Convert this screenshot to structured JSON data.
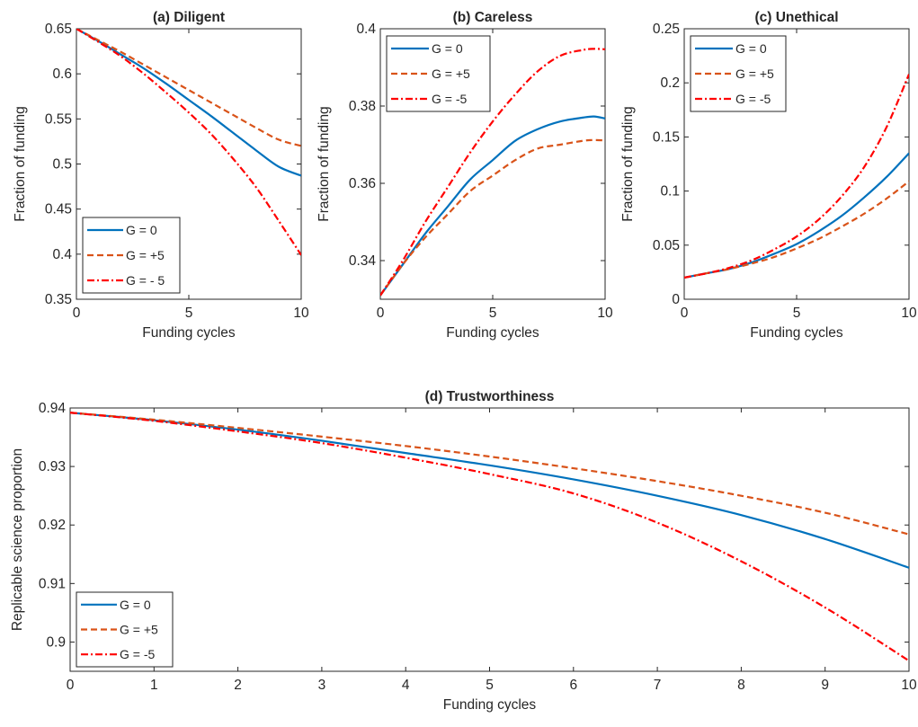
{
  "chart_data": [
    {
      "type": "line",
      "title": "(a) Diligent",
      "xlabel": "Funding cycles",
      "ylabel": "Fraction of funding",
      "xlim": [
        0,
        10
      ],
      "ylim": [
        0.35,
        0.65
      ],
      "xticks": [
        "0",
        "5",
        "10"
      ],
      "yticks": [
        "0.35",
        "0.4",
        "0.45",
        "0.5",
        "0.55",
        "0.6",
        "0.65"
      ],
      "legend": "bottom-left",
      "grid": false,
      "x": [
        0,
        1,
        2,
        3,
        4,
        5,
        6,
        7,
        8,
        9,
        10
      ],
      "series": [
        {
          "name": "G = 0",
          "color": "#0072BD",
          "dash": "solid",
          "values": [
            0.65,
            0.636,
            0.621,
            0.606,
            0.589,
            0.571,
            0.553,
            0.534,
            0.515,
            0.497,
            0.487
          ]
        },
        {
          "name": "G = +5",
          "color": "#D95319",
          "dash": "dashed",
          "values": [
            0.65,
            0.637,
            0.624,
            0.61,
            0.596,
            0.582,
            0.568,
            0.554,
            0.54,
            0.527,
            0.52
          ]
        },
        {
          "name": "G = - 5",
          "color": "#FF0000",
          "dash": "dashdot",
          "values": [
            0.65,
            0.635,
            0.619,
            0.6,
            0.579,
            0.557,
            0.533,
            0.505,
            0.474,
            0.437,
            0.399
          ]
        }
      ]
    },
    {
      "type": "line",
      "title": "(b) Careless",
      "xlabel": "Funding cycles",
      "ylabel": "Fraction of funding",
      "xlim": [
        0,
        10
      ],
      "ylim": [
        0.33,
        0.4
      ],
      "xticks": [
        "0",
        "5",
        "10"
      ],
      "yticks": [
        "0.34",
        "0.36",
        "0.38",
        "0.4"
      ],
      "legend": "top-left",
      "grid": false,
      "x": [
        0,
        1,
        2,
        3,
        4,
        5,
        6,
        7,
        8,
        9,
        9.5,
        10
      ],
      "series": [
        {
          "name": "G = 0",
          "color": "#0072BD",
          "dash": "solid",
          "values": [
            0.331,
            0.339,
            0.347,
            0.354,
            0.361,
            0.366,
            0.371,
            0.374,
            0.376,
            0.377,
            0.3773,
            0.3768
          ]
        },
        {
          "name": "G = +5",
          "color": "#D95319",
          "dash": "dashed",
          "values": [
            0.331,
            0.339,
            0.346,
            0.352,
            0.358,
            0.362,
            0.366,
            0.369,
            0.37,
            0.371,
            0.3712,
            0.3711
          ]
        },
        {
          "name": "G = -5",
          "color": "#FF0000",
          "dash": "dashdot",
          "values": [
            0.331,
            0.34,
            0.35,
            0.359,
            0.368,
            0.376,
            0.383,
            0.389,
            0.393,
            0.3945,
            0.3948,
            0.3947
          ]
        }
      ]
    },
    {
      "type": "line",
      "title": "(c) Unethical",
      "xlabel": "Funding cycles",
      "ylabel": "Fraction of funding",
      "xlim": [
        0,
        10
      ],
      "ylim": [
        0,
        0.25
      ],
      "xticks": [
        "0",
        "5",
        "10"
      ],
      "yticks": [
        "0",
        "0.05",
        "0.1",
        "0.15",
        "0.2",
        "0.25"
      ],
      "legend": "top-left",
      "grid": false,
      "x": [
        0,
        1,
        2,
        3,
        4,
        5,
        6,
        7,
        8,
        9,
        10
      ],
      "series": [
        {
          "name": "G = 0",
          "color": "#0072BD",
          "dash": "solid",
          "values": [
            0.02,
            0.024,
            0.028,
            0.034,
            0.042,
            0.051,
            0.063,
            0.077,
            0.094,
            0.113,
            0.135
          ]
        },
        {
          "name": "G = +5",
          "color": "#D95319",
          "dash": "dashed",
          "values": [
            0.02,
            0.024,
            0.028,
            0.033,
            0.039,
            0.047,
            0.056,
            0.067,
            0.079,
            0.093,
            0.109
          ]
        },
        {
          "name": "G = -5",
          "color": "#FF0000",
          "dash": "dashdot",
          "values": [
            0.02,
            0.024,
            0.029,
            0.036,
            0.046,
            0.058,
            0.074,
            0.095,
            0.122,
            0.159,
            0.208
          ]
        }
      ]
    },
    {
      "type": "line",
      "title": "(d) Trustworthiness",
      "xlabel": "Funding cycles",
      "ylabel": "Replicable science proportion",
      "xlim": [
        0,
        10
      ],
      "ylim": [
        0.895,
        0.94
      ],
      "xticks": [
        "0",
        "1",
        "2",
        "3",
        "4",
        "5",
        "6",
        "7",
        "8",
        "9",
        "10"
      ],
      "yticks": [
        "0.9",
        "0.91",
        "0.92",
        "0.93",
        "0.94"
      ],
      "legend": "bottom-left",
      "grid": false,
      "x": [
        0,
        1,
        2,
        3,
        4,
        5,
        6,
        7,
        8,
        9,
        10
      ],
      "series": [
        {
          "name": "G = 0",
          "color": "#0072BD",
          "dash": "solid",
          "values": [
            0.9392,
            0.9379,
            0.9363,
            0.9344,
            0.9323,
            0.9302,
            0.9278,
            0.925,
            0.9217,
            0.9176,
            0.9127
          ]
        },
        {
          "name": "G = +5",
          "color": "#D95319",
          "dash": "dashed",
          "values": [
            0.9392,
            0.938,
            0.9366,
            0.9351,
            0.9335,
            0.9317,
            0.9297,
            0.9275,
            0.925,
            0.9221,
            0.9184
          ]
        },
        {
          "name": "G = -5",
          "color": "#FF0000",
          "dash": "dashdot",
          "values": [
            0.9392,
            0.9378,
            0.936,
            0.934,
            0.9315,
            0.9287,
            0.9254,
            0.9204,
            0.9138,
            0.9059,
            0.8968
          ]
        }
      ]
    }
  ]
}
